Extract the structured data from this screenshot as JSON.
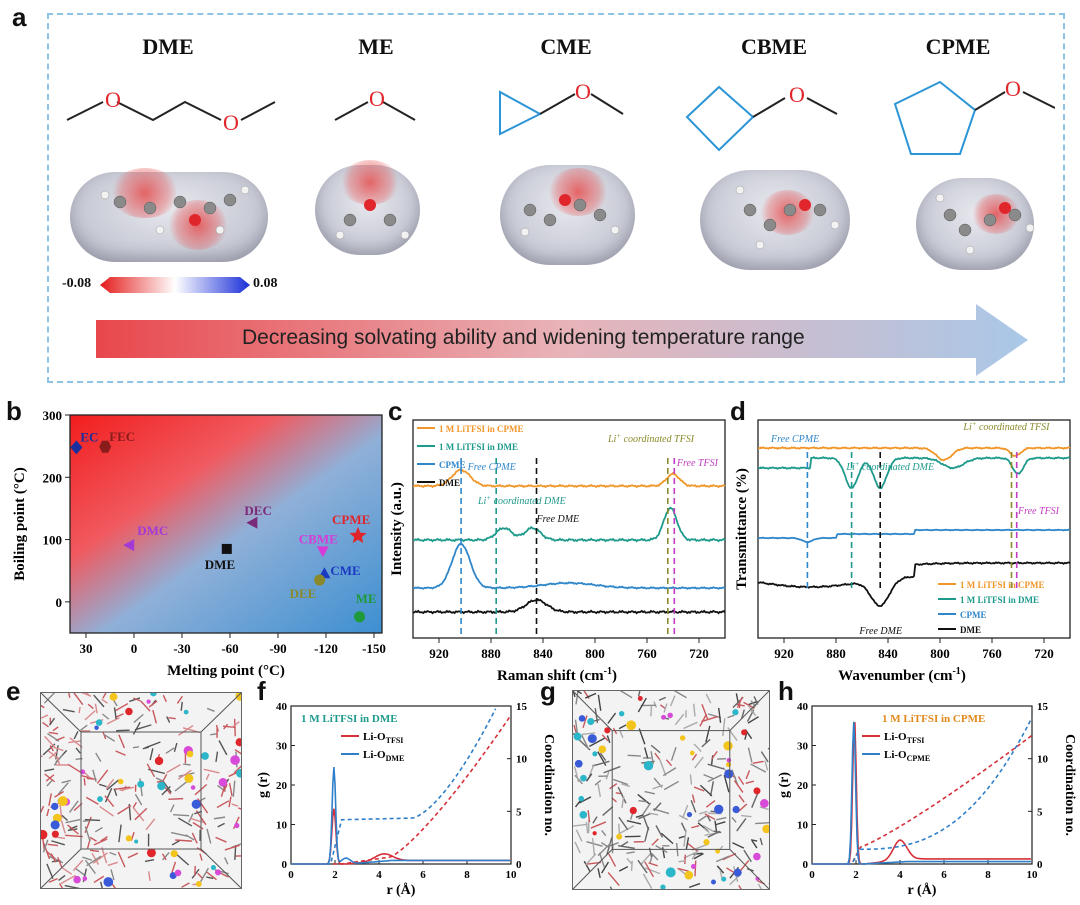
{
  "panel_labels": {
    "a": "a",
    "b": "b",
    "c": "c",
    "d": "d",
    "e": "e",
    "f": "f",
    "g": "g",
    "h": "h"
  },
  "panel_a": {
    "molecules": [
      "DME",
      "ME",
      "CME",
      "CBME",
      "CPME"
    ],
    "colorbar_min": "-0.08",
    "colorbar_max": "0.08",
    "arrow_text": "Decreasing solvating ability and widening temperature range",
    "colors": {
      "arrow_start": "#e8474c",
      "arrow_end": "#a9c8e8",
      "frame": "#8cc3e6",
      "skeleton_cyclic": "#2b95d6"
    }
  },
  "chart_data": [
    {
      "id": "b",
      "type": "scatter",
      "xlabel": "Melting point (°C)",
      "ylabel": "Boiling point (°C)",
      "xlim": [
        40,
        -155
      ],
      "ylim": [
        -50,
        300
      ],
      "xticks": [
        30,
        0,
        -30,
        -60,
        -90,
        -120,
        -150
      ],
      "yticks": [
        0,
        100,
        200,
        300
      ],
      "points": [
        {
          "label": "EC",
          "x": 36,
          "y": 248,
          "color": "#1a2f9e",
          "marker": "diamond"
        },
        {
          "label": "FEC",
          "x": 18,
          "y": 249,
          "color": "#8a1c1c",
          "marker": "hexagon"
        },
        {
          "label": "DMC",
          "x": 3,
          "y": 91,
          "color": "#a23ad6",
          "marker": "triangle-left"
        },
        {
          "label": "DEC",
          "x": -74,
          "y": 127,
          "color": "#7a2a7a",
          "marker": "triangle-left"
        },
        {
          "label": "DME",
          "x": -58,
          "y": 85,
          "color": "#111111",
          "marker": "square"
        },
        {
          "label": "CPME",
          "x": -140,
          "y": 106,
          "color": "#e0262b",
          "marker": "star"
        },
        {
          "label": "CBME",
          "x": -118,
          "y": 81,
          "color": "#d83ad8",
          "marker": "triangle-down"
        },
        {
          "label": "CME",
          "x": -119,
          "y": 46,
          "color": "#1a3ac0",
          "marker": "triangle-up"
        },
        {
          "label": "DEE",
          "x": -116,
          "y": 35,
          "color": "#8a8a2a",
          "marker": "circle"
        },
        {
          "label": "ME",
          "x": -141,
          "y": -24,
          "color": "#1f9a3a",
          "marker": "circle"
        }
      ]
    },
    {
      "id": "c",
      "type": "line",
      "xlabel": "Raman shift (cm",
      "ylabel": "Intensity (a.u.)",
      "xlim": [
        940,
        700
      ],
      "xticks": [
        920,
        880,
        840,
        800,
        760,
        720
      ],
      "series": [
        {
          "name": "1 M LiTFSI in CPME",
          "color": "#f0962a"
        },
        {
          "name": "1 M LiTFSI in DME",
          "color": "#1e9a8c"
        },
        {
          "name": "CPME",
          "color": "#2f86c9"
        },
        {
          "name": "DME",
          "color": "#111111"
        }
      ],
      "annotations": [
        "Free CPME",
        "Li",
        "coordinated DME",
        "Free DME",
        "coordinated TFSI",
        "Free TFSI"
      ]
    },
    {
      "id": "d",
      "type": "line",
      "xlabel": "Wavenumber (cm",
      "ylabel": "Transmittance (%)",
      "xlim": [
        940,
        700
      ],
      "xticks": [
        920,
        880,
        840,
        800,
        760,
        720
      ],
      "series": [
        {
          "name": "1 M LiTFSI in CPME",
          "color": "#f0962a"
        },
        {
          "name": "1 M LiTFSI in DME",
          "color": "#1e9a8c"
        },
        {
          "name": "CPME",
          "color": "#2f86c9"
        },
        {
          "name": "DME",
          "color": "#111111"
        }
      ],
      "annotations": [
        "Free CPME",
        "Li",
        "coordinated DME",
        "coordinated TFSI",
        "Free TFSI",
        "Free DME"
      ]
    },
    {
      "id": "f",
      "type": "line",
      "title": "1 M LiTFSI in DME",
      "xlabel": "r (Å)",
      "ylabel": "g (r)",
      "y2label": "Coordination no.",
      "xlim": [
        0,
        10
      ],
      "ylim": [
        0,
        40
      ],
      "y2lim": [
        0,
        15
      ],
      "xticks": [
        0,
        2,
        4,
        6,
        8,
        10
      ],
      "yticks": [
        0,
        10,
        20,
        30,
        40
      ],
      "y2ticks": [
        0,
        5,
        10,
        15
      ],
      "series": [
        {
          "name": "Li-O",
          "sub": "TFSI",
          "color": "#d6313a"
        },
        {
          "name": "Li-O",
          "sub": "DME",
          "color": "#2f7fc9"
        }
      ]
    },
    {
      "id": "h",
      "type": "line",
      "title": "1 M LiTFSI in CPME",
      "xlabel": "r (Å)",
      "ylabel": "g (r)",
      "y2label": "Coordination no.",
      "xlim": [
        0,
        10
      ],
      "ylim": [
        0,
        40
      ],
      "y2lim": [
        0,
        15
      ],
      "xticks": [
        0,
        2,
        4,
        6,
        8,
        10
      ],
      "yticks": [
        0,
        10,
        20,
        30,
        40
      ],
      "y2ticks": [
        0,
        5,
        10,
        15
      ],
      "series": [
        {
          "name": "Li-O",
          "sub": "TFSI",
          "color": "#d6313a"
        },
        {
          "name": "Li-O",
          "sub": "CPME",
          "color": "#2f7fc9"
        }
      ]
    }
  ]
}
